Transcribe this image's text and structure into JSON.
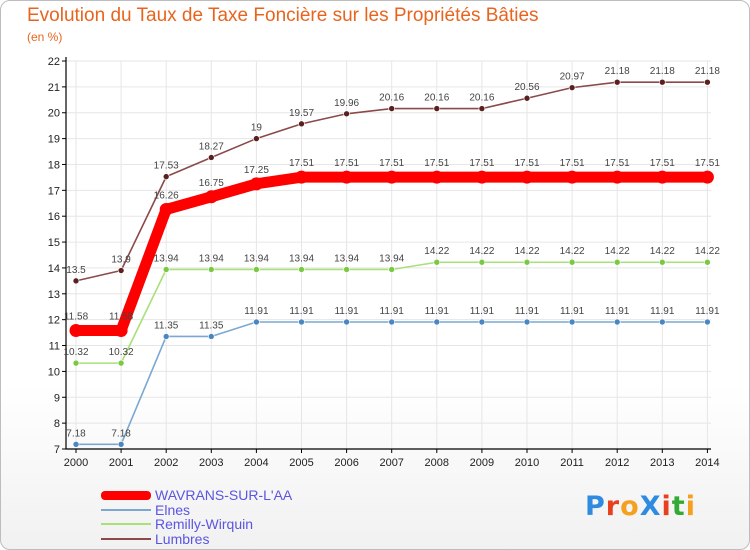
{
  "colors": {
    "title": "#e8641e",
    "axis": "#000000",
    "grid": "#e6e6e6",
    "label": "#444444",
    "legend_text": "#5b55e0"
  },
  "logo": {
    "text": "ProXiti",
    "letters": [
      "P",
      "r",
      "o",
      "X",
      "i",
      "t",
      "i"
    ],
    "letter_colors": [
      "#2f8be0",
      "#e8401e",
      "#f5a01e",
      "#2f8be0",
      "#e8401e",
      "#33aa33",
      "#f5a01e"
    ]
  },
  "chart_data": {
    "type": "line",
    "title": "Evolution du Taux de Taxe Foncière sur les Propriétés Bâties",
    "subtitle": "(en %)",
    "xlabel": "",
    "ylabel": "",
    "x": [
      "2000",
      "2001",
      "2002",
      "2003",
      "2004",
      "2005",
      "2006",
      "2007",
      "2008",
      "2009",
      "2010",
      "2011",
      "2012",
      "2013",
      "2014"
    ],
    "ylim": [
      7,
      22
    ],
    "yticks": [
      "7",
      "8",
      "9",
      "10",
      "11",
      "12",
      "13",
      "14",
      "15",
      "16",
      "17",
      "18",
      "19",
      "20",
      "21",
      "22"
    ],
    "legend_position": "bottom-left",
    "series": [
      {
        "name": "WAVRANS-SUR-L'AA",
        "color": "#ff0000",
        "point_color": "#ff0000",
        "emphasis": "heavy",
        "values": [
          11.58,
          11.58,
          16.26,
          16.75,
          17.25,
          17.51,
          17.51,
          17.51,
          17.51,
          17.51,
          17.51,
          17.51,
          17.51,
          17.51,
          17.51
        ],
        "labels": [
          "11.58",
          "11.58",
          "16.26",
          "16.75",
          "17.25",
          "17.51",
          "17.51",
          "17.51",
          "17.51",
          "17.51",
          "17.51",
          "17.51",
          "17.51",
          "17.51",
          "17.51"
        ]
      },
      {
        "name": "Elnes",
        "color": "#7aa8d2",
        "point_color": "#4a86c2",
        "emphasis": "normal",
        "values": [
          7.18,
          7.18,
          11.35,
          11.35,
          11.91,
          11.91,
          11.91,
          11.91,
          11.91,
          11.91,
          11.91,
          11.91,
          11.91,
          11.91,
          11.91
        ],
        "labels": [
          "7.18",
          "7.18",
          "11.35",
          "11.35",
          "11.91",
          "11.91",
          "11.91",
          "11.91",
          "11.91",
          "11.91",
          "11.91",
          "11.91",
          "11.91",
          "11.91",
          "11.91"
        ]
      },
      {
        "name": "Remilly-Wirquin",
        "color": "#a8e07a",
        "point_color": "#7ac943",
        "emphasis": "normal",
        "values": [
          10.32,
          10.32,
          13.94,
          13.94,
          13.94,
          13.94,
          13.94,
          13.94,
          14.22,
          14.22,
          14.22,
          14.22,
          14.22,
          14.22,
          14.22
        ],
        "labels": [
          "10.32",
          "10.32",
          "13.94",
          "13.94",
          "13.94",
          "13.94",
          "13.94",
          "13.94",
          "14.22",
          "14.22",
          "14.22",
          "14.22",
          "14.22",
          "14.22",
          "14.22"
        ]
      },
      {
        "name": "Lumbres",
        "color": "#8a4a4a",
        "point_color": "#5a2020",
        "emphasis": "normal",
        "values": [
          13.5,
          13.9,
          17.53,
          18.27,
          19,
          19.57,
          19.96,
          20.16,
          20.16,
          20.16,
          20.56,
          20.97,
          21.18,
          21.18,
          21.18
        ],
        "labels": [
          "13.5",
          "13.9",
          "17.53",
          "18.27",
          "19",
          "19.57",
          "19.96",
          "20.16",
          "20.16",
          "20.16",
          "20.56",
          "20.97",
          "21.18",
          "21.18",
          "21.18"
        ]
      }
    ]
  }
}
